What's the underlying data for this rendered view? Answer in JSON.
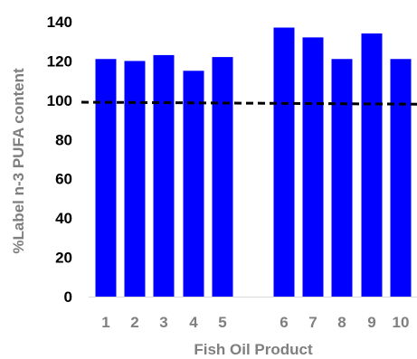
{
  "chart_data": {
    "type": "bar",
    "title": "",
    "xlabel": "Fish Oil Product",
    "ylabel": "%Label n-3 PUFA content",
    "categories": [
      "1",
      "2",
      "3",
      "4",
      "5",
      "6",
      "7",
      "8",
      "9",
      "10"
    ],
    "values": [
      121,
      120,
      123,
      115,
      122,
      137,
      132,
      121,
      134,
      121
    ],
    "ylim": [
      0,
      140
    ],
    "yticks": [
      0,
      20,
      40,
      60,
      80,
      100,
      120,
      140
    ],
    "reference_line": {
      "y": [
        99,
        98
      ],
      "style": "dashed",
      "color": "#000000"
    },
    "bar_color": "#0000ff",
    "grid": false,
    "legend": "none"
  }
}
